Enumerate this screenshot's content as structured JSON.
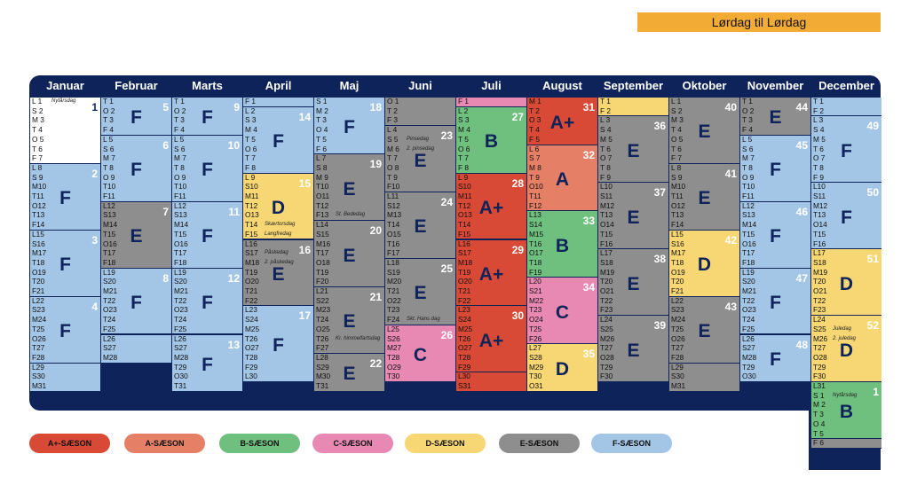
{
  "banner": {
    "label": "Lørdag til Lørdag"
  },
  "colors": {
    "A+": "#d84a36",
    "A": "#e57f65",
    "B": "#6fbf7f",
    "C": "#e889b4",
    "D": "#f7d774",
    "E": "#8e8e8e",
    "F": "#a4c6e6",
    "none": "#ffffff",
    "header": "#0e2359",
    "banner": "#f2ab34"
  },
  "months": [
    {
      "name": "Januar",
      "days": [
        "L 1",
        "S 2",
        "M 3",
        "T 4",
        "O 5",
        "T 6",
        "F 7",
        "L 8",
        "S 9",
        "M10",
        "T11",
        "O12",
        "T13",
        "F14",
        "L15",
        "S16",
        "M17",
        "T18",
        "O19",
        "T20",
        "F21",
        "L22",
        "S23",
        "M24",
        "T25",
        "O26",
        "T27",
        "F28",
        "L29",
        "S30",
        "M31"
      ],
      "holidays": [
        {
          "day": 0,
          "text": "Nytårsdag"
        }
      ],
      "blocks": [
        {
          "season": "none",
          "start": 0,
          "end": 6,
          "week": "1"
        },
        {
          "season": "F",
          "start": 7,
          "end": 13,
          "week": "2"
        },
        {
          "season": "F",
          "start": 14,
          "end": 20,
          "week": "3"
        },
        {
          "season": "F",
          "start": 21,
          "end": 27,
          "week": "4"
        },
        {
          "season": "F",
          "start": 28,
          "end": 30,
          "week": ""
        }
      ]
    },
    {
      "name": "Februar",
      "days": [
        "T 1",
        "O 2",
        "T 3",
        "F 4",
        "L 5",
        "S 6",
        "M 7",
        "T 8",
        "O 9",
        "T10",
        "F11",
        "L12",
        "S13",
        "M14",
        "T15",
        "O16",
        "T17",
        "F18",
        "L19",
        "S20",
        "M21",
        "T22",
        "O23",
        "T24",
        "F25",
        "L26",
        "S27",
        "M28"
      ],
      "holidays": [],
      "blocks": [
        {
          "season": "F",
          "start": 0,
          "end": 3,
          "week": "5"
        },
        {
          "season": "F",
          "start": 4,
          "end": 10,
          "week": "6"
        },
        {
          "season": "E",
          "start": 11,
          "end": 17,
          "week": "7"
        },
        {
          "season": "F",
          "start": 18,
          "end": 24,
          "week": "8"
        },
        {
          "season": "F",
          "start": 25,
          "end": 27,
          "week": ""
        }
      ]
    },
    {
      "name": "Marts",
      "days": [
        "T 1",
        "O 2",
        "T 3",
        "F 4",
        "L 5",
        "S 6",
        "M 7",
        "T 8",
        "O 9",
        "T10",
        "F11",
        "L12",
        "S13",
        "M14",
        "T15",
        "O16",
        "T17",
        "F18",
        "L19",
        "S20",
        "M21",
        "T22",
        "O23",
        "T24",
        "F25",
        "L26",
        "S27",
        "M28",
        "T29",
        "O30",
        "T31"
      ],
      "holidays": [],
      "blocks": [
        {
          "season": "F",
          "start": 0,
          "end": 3,
          "week": "9"
        },
        {
          "season": "F",
          "start": 4,
          "end": 10,
          "week": "10"
        },
        {
          "season": "F",
          "start": 11,
          "end": 17,
          "week": "11"
        },
        {
          "season": "F",
          "start": 18,
          "end": 24,
          "week": "12"
        },
        {
          "season": "F",
          "start": 25,
          "end": 30,
          "week": "13"
        }
      ]
    },
    {
      "name": "April",
      "days": [
        "F 1",
        "L 2",
        "S 3",
        "M 4",
        "T 5",
        "O 6",
        "T 7",
        "F 8",
        "L 9",
        "S10",
        "M11",
        "T12",
        "O13",
        "T14",
        "F15",
        "L16",
        "S17",
        "M18",
        "T19",
        "O20",
        "T21",
        "F22",
        "L23",
        "S24",
        "M25",
        "T26",
        "O27",
        "T28",
        "F29",
        "L30"
      ],
      "holidays": [
        {
          "day": 13,
          "text": "Skærtorsdag"
        },
        {
          "day": 14,
          "text": "Langfredag"
        },
        {
          "day": 16,
          "text": "Påskedag"
        },
        {
          "day": 17,
          "text": "2. påskedag"
        }
      ],
      "blocks": [
        {
          "season": "F",
          "start": 0,
          "end": 0,
          "week": ""
        },
        {
          "season": "F",
          "start": 1,
          "end": 7,
          "week": "14"
        },
        {
          "season": "D",
          "start": 8,
          "end": 14,
          "week": "15"
        },
        {
          "season": "E",
          "start": 15,
          "end": 21,
          "week": "16"
        },
        {
          "season": "F",
          "start": 22,
          "end": 29,
          "week": "17"
        }
      ]
    },
    {
      "name": "Maj",
      "days": [
        "S 1",
        "M 2",
        "T 3",
        "O 4",
        "T 5",
        "F 6",
        "L 7",
        "S 8",
        "M 9",
        "T10",
        "O11",
        "T12",
        "F13",
        "L14",
        "S15",
        "M16",
        "T17",
        "O18",
        "T19",
        "F20",
        "L21",
        "S22",
        "M23",
        "T24",
        "O25",
        "T26",
        "F27",
        "L28",
        "S29",
        "M30",
        "T31"
      ],
      "holidays": [
        {
          "day": 12,
          "text": "St. Bededag"
        },
        {
          "day": 25,
          "text": "Kr. himmelfartsdag"
        }
      ],
      "blocks": [
        {
          "season": "F",
          "start": 0,
          "end": 5,
          "week": "18"
        },
        {
          "season": "E",
          "start": 6,
          "end": 12,
          "week": "19"
        },
        {
          "season": "E",
          "start": 13,
          "end": 19,
          "week": "20"
        },
        {
          "season": "E",
          "start": 20,
          "end": 26,
          "week": "21"
        },
        {
          "season": "E",
          "start": 27,
          "end": 30,
          "week": "22"
        }
      ]
    },
    {
      "name": "Juni",
      "days": [
        "O 1",
        "T 2",
        "F 3",
        "L 4",
        "S 5",
        "M 6",
        "T 7",
        "O 8",
        "T 9",
        "F10",
        "L11",
        "S12",
        "M13",
        "T14",
        "O15",
        "T16",
        "F17",
        "L18",
        "S19",
        "M20",
        "T21",
        "O22",
        "T23",
        "F24",
        "L25",
        "S26",
        "M27",
        "T28",
        "O29",
        "T30"
      ],
      "holidays": [
        {
          "day": 4,
          "text": "Pinsedag"
        },
        {
          "day": 5,
          "text": "2. pinsedag"
        },
        {
          "day": 23,
          "text": "Skt. Hans dag"
        }
      ],
      "blocks": [
        {
          "season": "E",
          "start": 0,
          "end": 2,
          "week": ""
        },
        {
          "season": "E",
          "start": 3,
          "end": 9,
          "week": "23"
        },
        {
          "season": "E",
          "start": 10,
          "end": 16,
          "week": "24"
        },
        {
          "season": "E",
          "start": 17,
          "end": 23,
          "week": "25"
        },
        {
          "season": "C",
          "start": 24,
          "end": 29,
          "week": "26"
        }
      ]
    },
    {
      "name": "Juli",
      "days": [
        "F 1",
        "L 2",
        "S 3",
        "M 4",
        "T 5",
        "O 6",
        "T 7",
        "F 8",
        "L 9",
        "S10",
        "M11",
        "T12",
        "O13",
        "T14",
        "F15",
        "L16",
        "S17",
        "M18",
        "T19",
        "O20",
        "T21",
        "F22",
        "L23",
        "S24",
        "M25",
        "T26",
        "O27",
        "T28",
        "F29",
        "L30",
        "S31"
      ],
      "holidays": [],
      "blocks": [
        {
          "season": "C",
          "start": 0,
          "end": 0,
          "week": ""
        },
        {
          "season": "B",
          "start": 1,
          "end": 7,
          "week": "27"
        },
        {
          "season": "A+",
          "start": 8,
          "end": 14,
          "week": "28"
        },
        {
          "season": "A+",
          "start": 15,
          "end": 21,
          "week": "29"
        },
        {
          "season": "A+",
          "start": 22,
          "end": 28,
          "week": "30"
        },
        {
          "season": "A+",
          "start": 29,
          "end": 30,
          "week": ""
        }
      ]
    },
    {
      "name": "August",
      "days": [
        "M 1",
        "T 2",
        "O 3",
        "T 4",
        "F 5",
        "L 6",
        "S 7",
        "M 8",
        "T 9",
        "O10",
        "T11",
        "F12",
        "L13",
        "S14",
        "M15",
        "T16",
        "O17",
        "T18",
        "F19",
        "L20",
        "S21",
        "M22",
        "T23",
        "O24",
        "T25",
        "F26",
        "L27",
        "S28",
        "M29",
        "T30",
        "O31"
      ],
      "holidays": [],
      "blocks": [
        {
          "season": "A+",
          "start": 0,
          "end": 4,
          "week": "31"
        },
        {
          "season": "A",
          "start": 5,
          "end": 11,
          "week": "32"
        },
        {
          "season": "B",
          "start": 12,
          "end": 18,
          "week": "33"
        },
        {
          "season": "C",
          "start": 19,
          "end": 25,
          "week": "34"
        },
        {
          "season": "D",
          "start": 26,
          "end": 30,
          "week": "35"
        }
      ]
    },
    {
      "name": "September",
      "days": [
        "T 1",
        "F 2",
        "L 3",
        "S 4",
        "M 5",
        "T 6",
        "O 7",
        "T 8",
        "F 9",
        "L10",
        "S11",
        "M12",
        "T13",
        "O14",
        "T15",
        "F16",
        "L17",
        "S18",
        "M19",
        "T20",
        "O21",
        "T22",
        "F23",
        "L24",
        "S25",
        "M26",
        "T27",
        "O28",
        "T29",
        "F30"
      ],
      "holidays": [],
      "blocks": [
        {
          "season": "D",
          "start": 0,
          "end": 1,
          "week": ""
        },
        {
          "season": "E",
          "start": 2,
          "end": 8,
          "week": "36"
        },
        {
          "season": "E",
          "start": 9,
          "end": 15,
          "week": "37"
        },
        {
          "season": "E",
          "start": 16,
          "end": 22,
          "week": "38"
        },
        {
          "season": "E",
          "start": 23,
          "end": 29,
          "week": "39"
        }
      ]
    },
    {
      "name": "Oktober",
      "days": [
        "L 1",
        "S 2",
        "M 3",
        "T 4",
        "O 5",
        "T 6",
        "F 7",
        "L 8",
        "S 9",
        "M10",
        "T11",
        "O12",
        "T13",
        "F14",
        "L15",
        "S16",
        "M17",
        "T18",
        "O19",
        "T20",
        "F21",
        "L22",
        "S23",
        "M24",
        "T25",
        "O26",
        "T27",
        "F28",
        "L29",
        "S30",
        "M31"
      ],
      "holidays": [],
      "blocks": [
        {
          "season": "E",
          "start": 0,
          "end": 6,
          "week": "40"
        },
        {
          "season": "E",
          "start": 7,
          "end": 13,
          "week": "41"
        },
        {
          "season": "D",
          "start": 14,
          "end": 20,
          "week": "42"
        },
        {
          "season": "E",
          "start": 21,
          "end": 27,
          "week": "43"
        },
        {
          "season": "E",
          "start": 28,
          "end": 30,
          "week": ""
        }
      ]
    },
    {
      "name": "November",
      "days": [
        "T 1",
        "O 2",
        "T 3",
        "F 4",
        "L 5",
        "S 6",
        "M 7",
        "T 8",
        "O 9",
        "T10",
        "F11",
        "L12",
        "S13",
        "M14",
        "T15",
        "O16",
        "T17",
        "F18",
        "L19",
        "S20",
        "M21",
        "T22",
        "O23",
        "T24",
        "F25",
        "L26",
        "S27",
        "M28",
        "T29",
        "O30"
      ],
      "holidays": [],
      "blocks": [
        {
          "season": "E",
          "start": 0,
          "end": 3,
          "week": "44"
        },
        {
          "season": "F",
          "start": 4,
          "end": 10,
          "week": "45"
        },
        {
          "season": "F",
          "start": 11,
          "end": 17,
          "week": "46"
        },
        {
          "season": "F",
          "start": 18,
          "end": 24,
          "week": "47"
        },
        {
          "season": "F",
          "start": 25,
          "end": 29,
          "week": "48"
        }
      ]
    },
    {
      "name": "December",
      "days": [
        "T 1",
        "F 2",
        "L 3",
        "S 4",
        "M 5",
        "T 6",
        "O 7",
        "T 8",
        "F 9",
        "L10",
        "S11",
        "M12",
        "T13",
        "O14",
        "T15",
        "F16",
        "L17",
        "S18",
        "M19",
        "T20",
        "O21",
        "T22",
        "F23",
        "L24",
        "S25",
        "M26",
        "T27",
        "O28",
        "T29",
        "F30",
        "L31",
        "S 1",
        "M 2",
        "T 3",
        "O 4",
        "T 5",
        "F 6"
      ],
      "holidays": [
        {
          "day": 24,
          "text": "Juledag"
        },
        {
          "day": 25,
          "text": "2. juledag"
        },
        {
          "day": 31,
          "text": "Nytårsdag"
        }
      ],
      "blocks": [
        {
          "season": "F",
          "start": 0,
          "end": 1,
          "week": ""
        },
        {
          "season": "F",
          "start": 2,
          "end": 8,
          "week": "49"
        },
        {
          "season": "F",
          "start": 9,
          "end": 15,
          "week": "50"
        },
        {
          "season": "D",
          "start": 16,
          "end": 22,
          "week": "51"
        },
        {
          "season": "D",
          "start": 23,
          "end": 29,
          "week": "52"
        },
        {
          "season": "B",
          "start": 30,
          "end": 35,
          "week": "1"
        },
        {
          "season": "E",
          "start": 36,
          "end": 36,
          "week": ""
        }
      ]
    }
  ],
  "legend": [
    {
      "label": "A+-SÆSON",
      "season": "A+"
    },
    {
      "label": "A-SÆSON",
      "season": "A"
    },
    {
      "label": "B-SÆSON",
      "season": "B"
    },
    {
      "label": "C-SÆSON",
      "season": "C"
    },
    {
      "label": "D-SÆSON",
      "season": "D"
    },
    {
      "label": "E-SÆSON",
      "season": "E"
    },
    {
      "label": "F-SÆSON",
      "season": "F"
    }
  ]
}
